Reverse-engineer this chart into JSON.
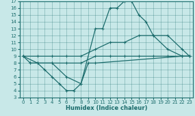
{
  "xlabel": "Humidex (Indice chaleur)",
  "bg_color": "#c8e8e8",
  "line_color": "#1a6b6b",
  "xlim": [
    -0.5,
    23.5
  ],
  "ylim": [
    3,
    17
  ],
  "xticks": [
    0,
    1,
    2,
    3,
    4,
    5,
    6,
    7,
    8,
    9,
    10,
    11,
    12,
    13,
    14,
    15,
    16,
    17,
    18,
    19,
    20,
    21,
    22,
    23
  ],
  "yticks": [
    3,
    4,
    5,
    6,
    7,
    8,
    9,
    10,
    11,
    12,
    13,
    14,
    15,
    16,
    17
  ],
  "line1_x": [
    0,
    1,
    2,
    4,
    6,
    8,
    10,
    11,
    12,
    13,
    14,
    15,
    16,
    17,
    18,
    20,
    22,
    23
  ],
  "line1_y": [
    9,
    8,
    8,
    8,
    6,
    5,
    13,
    13,
    16,
    16,
    17,
    17,
    15,
    14,
    12,
    10,
    9,
    9
  ],
  "line2_x": [
    0,
    2,
    4,
    6,
    8,
    10,
    12,
    14,
    16,
    18,
    20,
    22,
    23
  ],
  "line2_y": [
    9,
    9,
    9,
    9,
    9,
    10,
    11,
    11,
    12,
    12,
    12,
    10,
    9
  ],
  "line3_x": [
    0,
    2,
    4,
    6,
    8,
    10,
    12,
    14,
    16,
    18,
    20,
    22,
    23
  ],
  "line3_y": [
    9,
    8,
    8,
    8,
    8,
    9,
    9,
    9,
    9,
    9,
    9,
    9,
    9
  ],
  "line4_x": [
    1,
    2,
    3,
    4,
    5,
    6,
    7,
    8,
    9,
    10,
    22,
    23
  ],
  "line4_y": [
    8,
    8,
    7,
    6,
    5,
    4,
    4,
    5,
    8,
    8,
    9,
    9
  ],
  "marker_size": 3,
  "linewidth": 0.9
}
